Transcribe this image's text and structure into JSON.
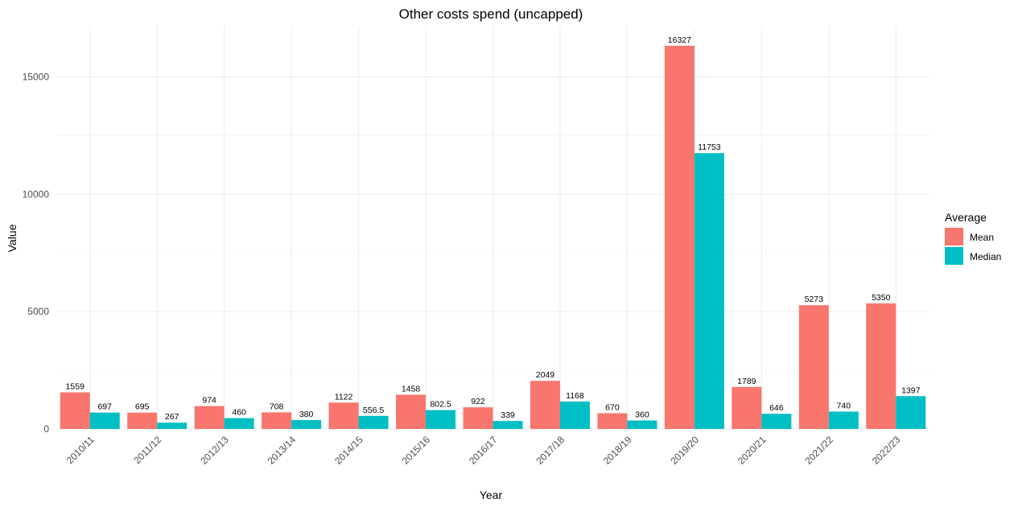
{
  "chart_data": {
    "type": "bar",
    "title": "Other costs spend (uncapped)",
    "xlabel": "Year",
    "ylabel": "Value",
    "ylim": [
      0,
      17000
    ],
    "yticks": [
      0,
      5000,
      10000,
      15000
    ],
    "grid": true,
    "categories": [
      "2010/11",
      "2011/12",
      "2012/13",
      "2013/14",
      "2014/15",
      "2015/16",
      "2016/17",
      "2017/18",
      "2018/19",
      "2019/20",
      "2020/21",
      "2021/22",
      "2022/23"
    ],
    "series": [
      {
        "name": "Mean",
        "color": "#F8766D",
        "values": [
          1559,
          695,
          974,
          708,
          1122,
          1458,
          922,
          2049,
          670,
          16327,
          1789,
          5273,
          5350
        ],
        "labels": [
          "1559",
          "695",
          "974",
          "708",
          "1122",
          "1458",
          "922",
          "2049",
          "670",
          "16327",
          "1789",
          "5273",
          "5350"
        ]
      },
      {
        "name": "Median",
        "color": "#00BFC4",
        "values": [
          697,
          267,
          460,
          380,
          556.5,
          802.5,
          339,
          1168,
          360,
          11753,
          646,
          740,
          1397
        ],
        "labels": [
          "697",
          "267",
          "460",
          "380",
          "556.5",
          "802.5",
          "339",
          "1168",
          "360",
          "11753",
          "646",
          "740",
          "1397"
        ]
      }
    ],
    "legend": {
      "title": "Average",
      "position": "right"
    }
  }
}
